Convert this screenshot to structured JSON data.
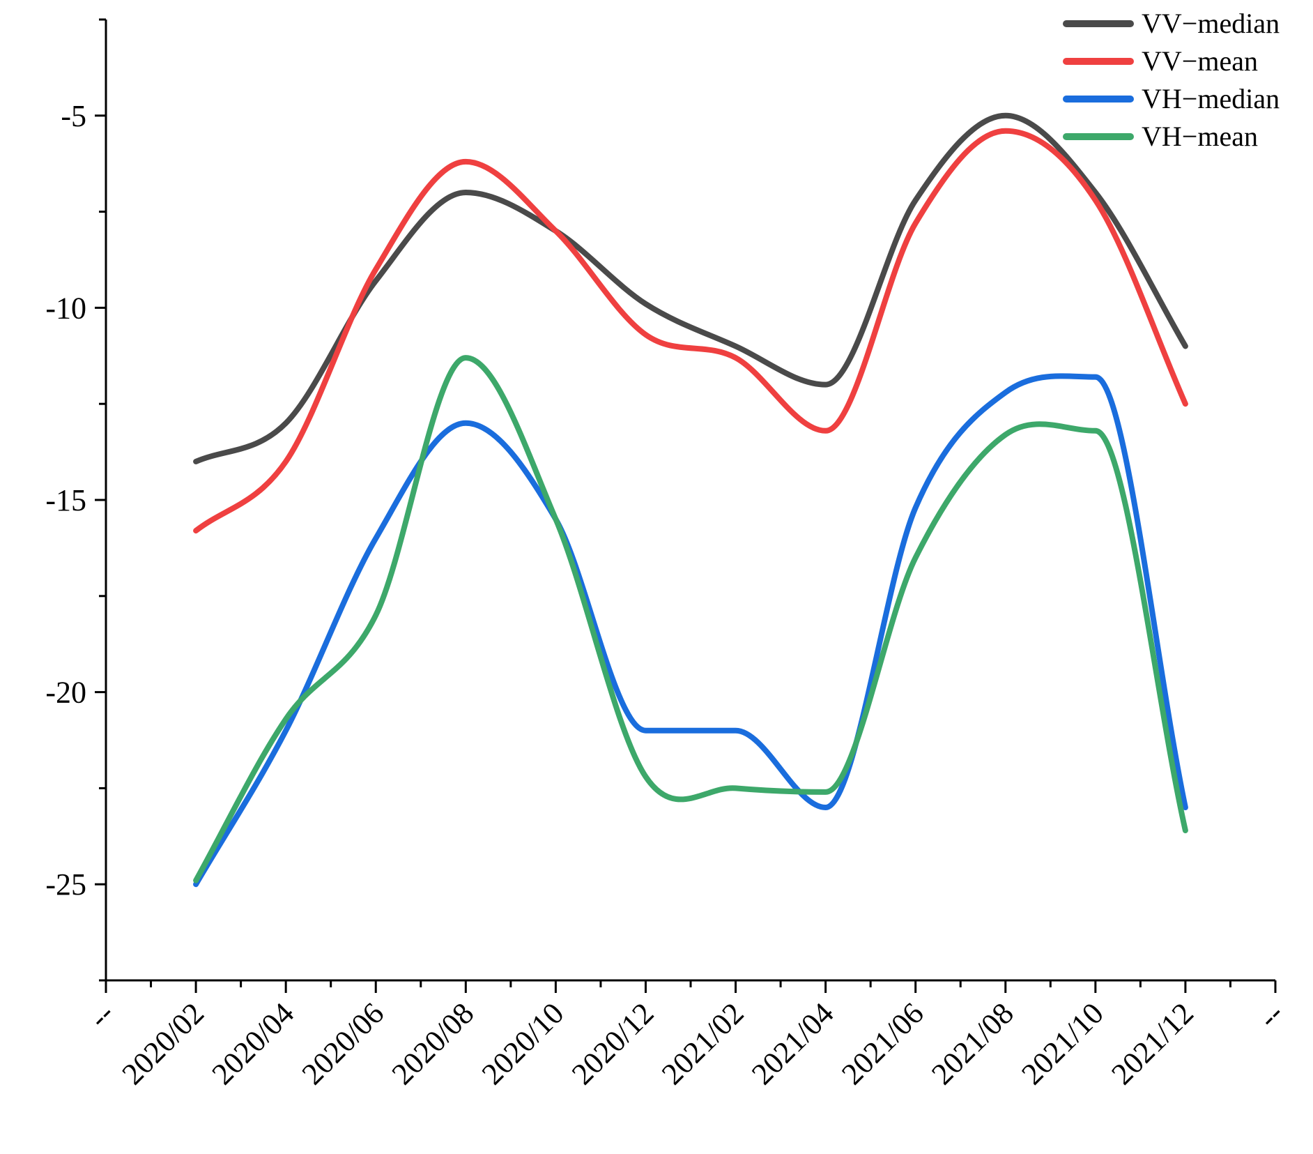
{
  "chart_data": {
    "type": "line",
    "title": "",
    "xlabel": "",
    "ylabel": "",
    "x_tick_labels": [
      "--",
      "2020/02",
      "2020/04",
      "2020/06",
      "2020/08",
      "2020/10",
      "2020/12",
      "2021/02",
      "2021/04",
      "2021/06",
      "2021/08",
      "2021/10",
      "2021/12",
      "--"
    ],
    "y_ticks": [
      -5,
      -10,
      -15,
      -20,
      -25
    ],
    "y_tick_labels": [
      "-5",
      "-10",
      "-15",
      "-20",
      "-25"
    ],
    "xlim": [
      -1,
      12
    ],
    "ylim": [
      -27.5,
      -2.5
    ],
    "legend_position": "top-right",
    "grid": false,
    "series": [
      {
        "name": "VV−median",
        "color": "#4a4a4a",
        "x": [
          0,
          1,
          2,
          3,
          4,
          5,
          6,
          7,
          8,
          9,
          10,
          11
        ],
        "values": [
          -14.0,
          -13.0,
          -9.3,
          -7.0,
          -8.0,
          -9.9,
          -11.0,
          -12.0,
          -7.2,
          -5.0,
          -7.0,
          -11.0
        ]
      },
      {
        "name": "VV−mean",
        "color": "#ef4040",
        "x": [
          0,
          1,
          2,
          3,
          4,
          5,
          6,
          7,
          8,
          9,
          10,
          11
        ],
        "values": [
          -15.8,
          -14.0,
          -9.0,
          -6.2,
          -8.0,
          -10.7,
          -11.3,
          -13.2,
          -7.8,
          -5.4,
          -7.2,
          -12.5
        ]
      },
      {
        "name": "VH−median",
        "color": "#1a6ddd",
        "x": [
          0,
          1,
          2,
          3,
          4,
          5,
          6,
          7,
          8,
          9,
          10,
          11
        ],
        "values": [
          -25.0,
          -21.0,
          -16.0,
          -13.0,
          -15.5,
          -21.0,
          -21.0,
          -23.0,
          -15.2,
          -12.2,
          -11.8,
          -23.0
        ]
      },
      {
        "name": "VH−mean",
        "color": "#3da86a",
        "x": [
          0,
          1,
          2,
          3,
          4,
          5,
          6,
          7,
          8,
          9,
          10,
          11
        ],
        "values": [
          -24.9,
          -20.7,
          -18.0,
          -11.3,
          -15.5,
          -22.2,
          -22.5,
          -22.6,
          -16.5,
          -13.3,
          -13.2,
          -23.6
        ]
      }
    ]
  }
}
